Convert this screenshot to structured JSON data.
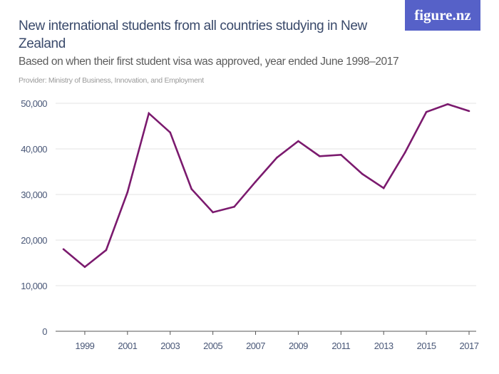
{
  "header": {
    "title": "New international students from all countries studying in New Zealand",
    "subtitle": "Based on when their first student visa was approved, year ended June 1998–2017",
    "provider": "Provider: Ministry of Business, Innovation, and Employment",
    "logo": "figure.nz"
  },
  "colors": {
    "line": "#7b1a6e",
    "logo_bg": "#5661c8",
    "text": "#3a4a6b"
  },
  "chart_data": {
    "type": "line",
    "title": "New international students from all countries studying in New Zealand",
    "x": [
      1998,
      1999,
      2000,
      2001,
      2002,
      2003,
      2004,
      2005,
      2006,
      2007,
      2008,
      2009,
      2010,
      2011,
      2012,
      2013,
      2014,
      2015,
      2016,
      2017
    ],
    "values": [
      18000,
      14100,
      17800,
      30500,
      47800,
      43600,
      31200,
      26100,
      27300,
      32800,
      38100,
      41700,
      38400,
      38700,
      34500,
      31400,
      39200,
      48100,
      49800,
      48300
    ],
    "ylim": [
      0,
      50000
    ],
    "yticks": [
      "0",
      "10,000",
      "20,000",
      "30,000",
      "40,000",
      "50,000"
    ],
    "xticks": [
      "1999",
      "2001",
      "2003",
      "2005",
      "2007",
      "2009",
      "2011",
      "2013",
      "2015",
      "2017"
    ],
    "grid": true,
    "xlabel": "",
    "ylabel": ""
  }
}
